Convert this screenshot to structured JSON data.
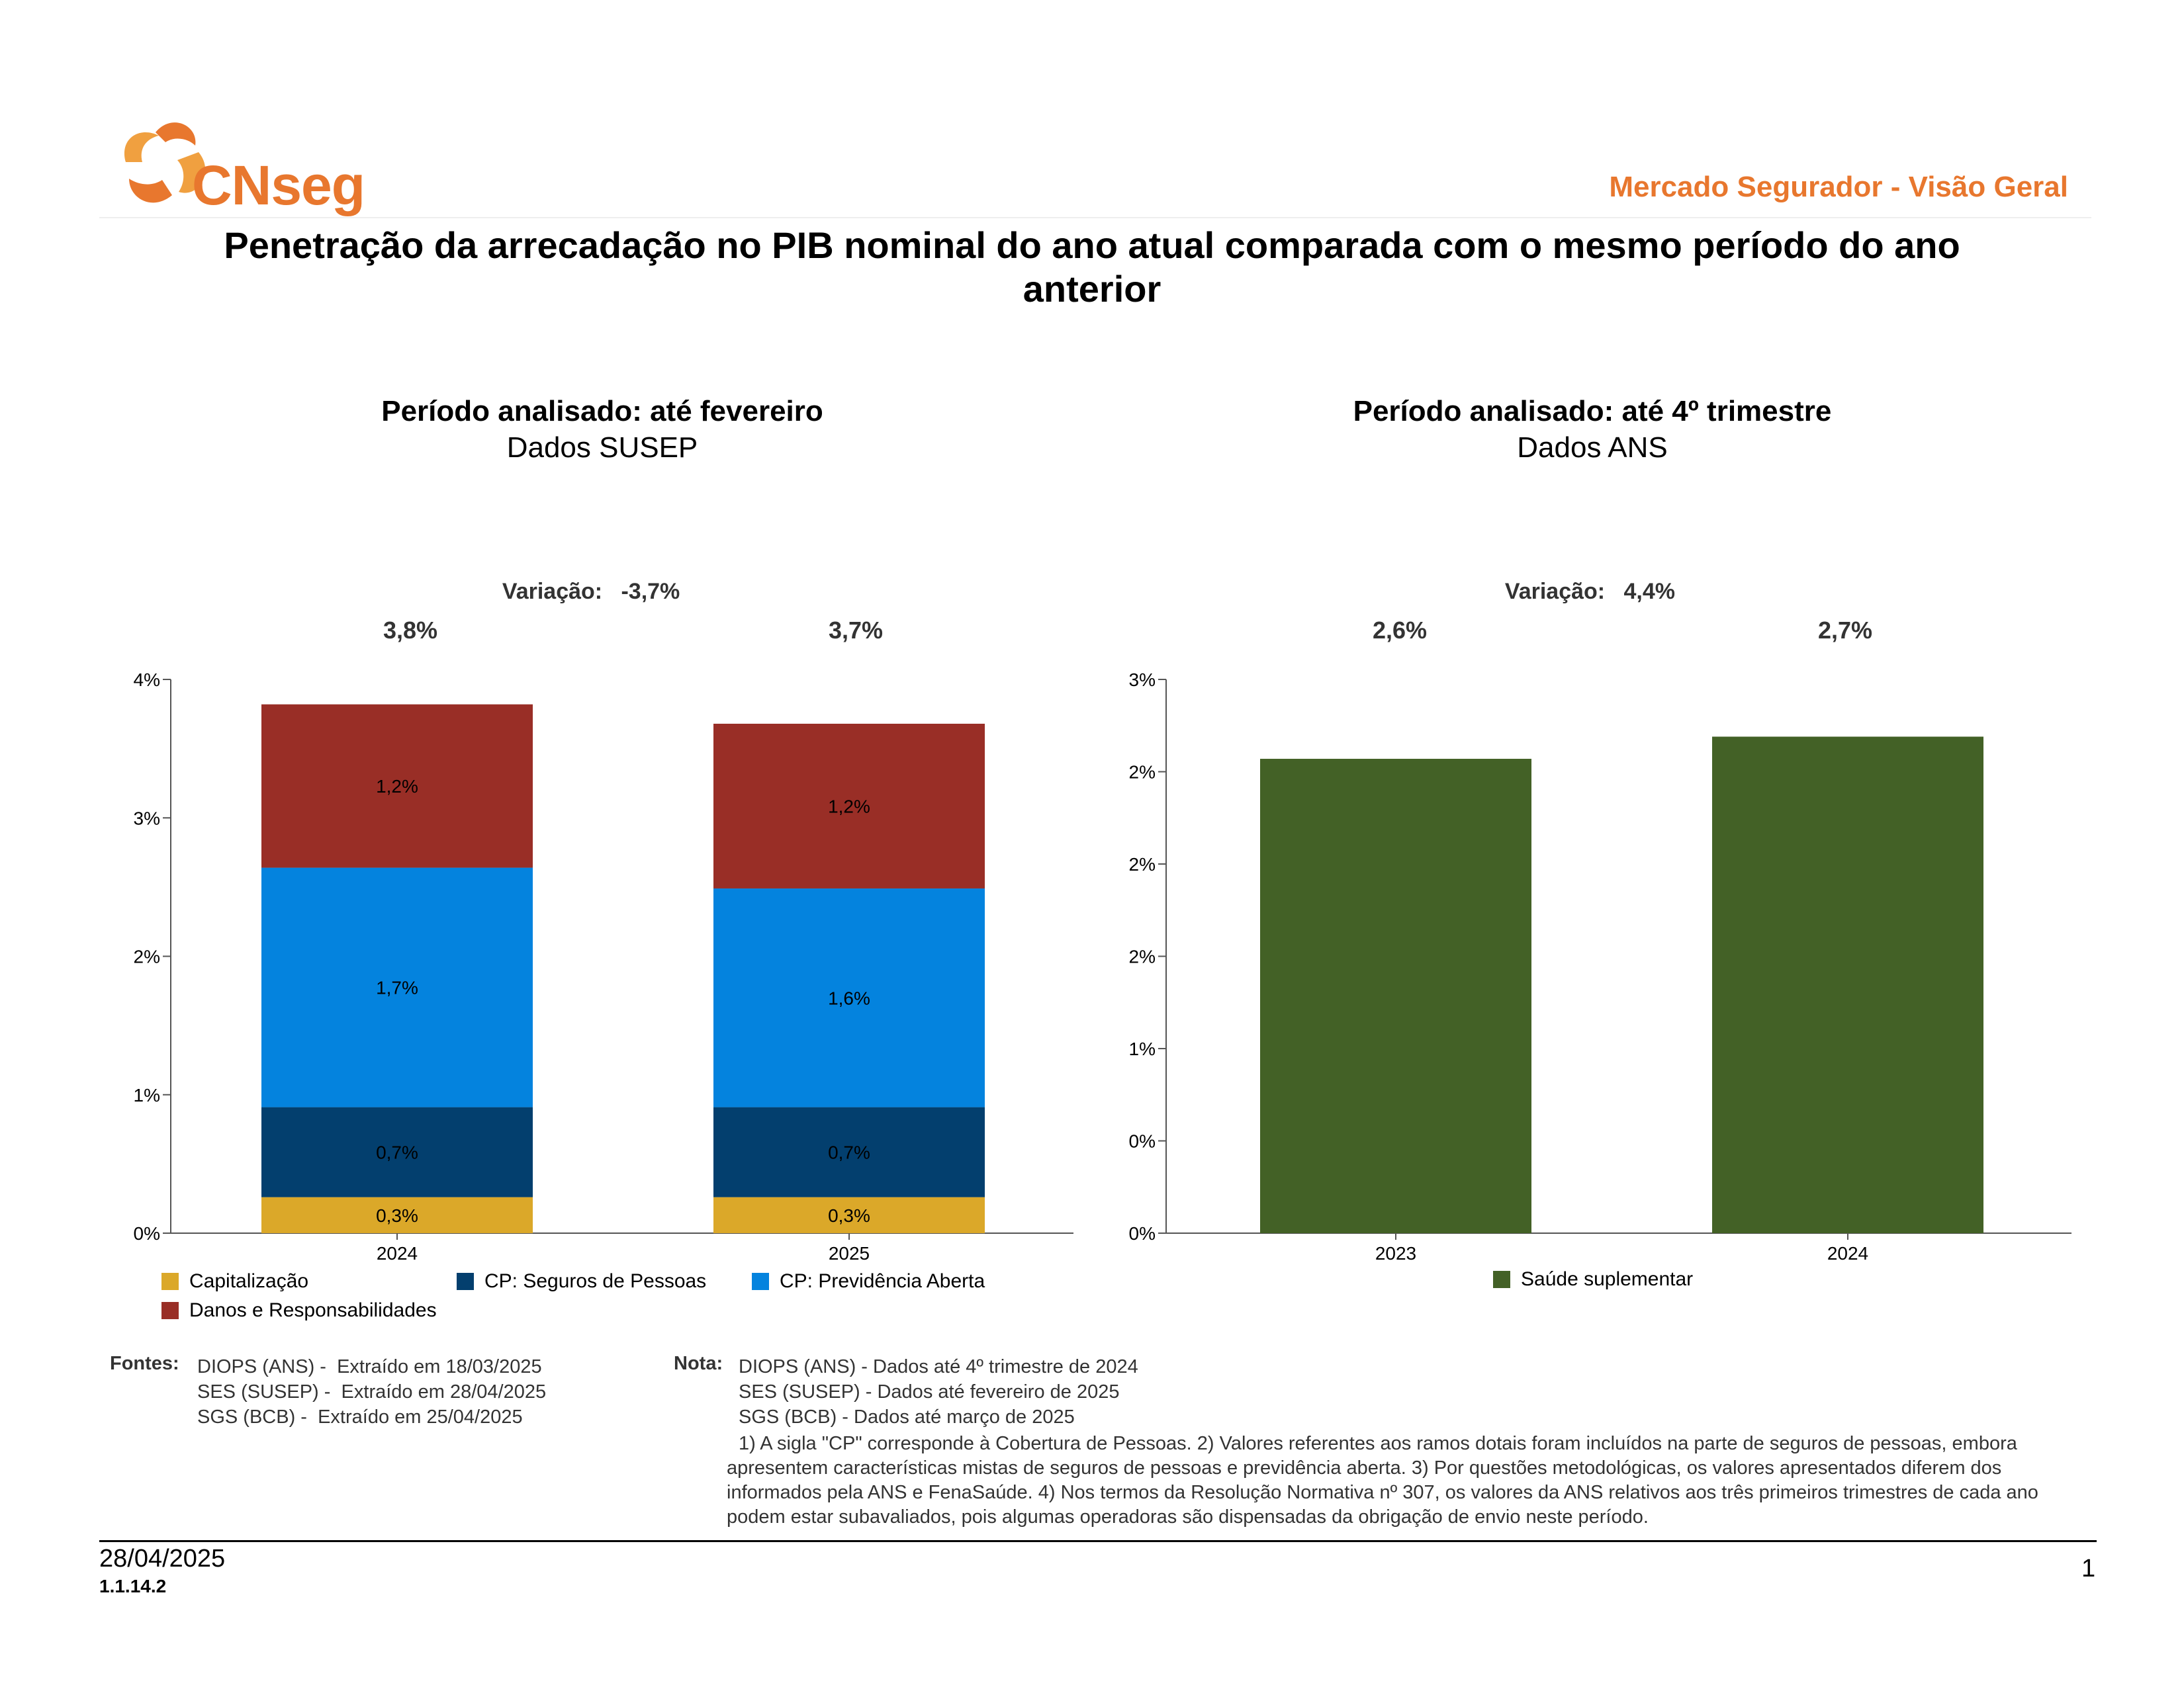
{
  "header": {
    "logo_text": "CNseg",
    "section_title": "Mercado Segurador - Visão Geral"
  },
  "title": "Penetração da arrecadação no PIB nominal do ano atual comparada com o mesmo período do ano anterior",
  "colors": {
    "brand_orange": "#e8772e",
    "capitalizacao": "#dba829",
    "seguros_pessoas": "#033f6e",
    "previdencia": "#0483de",
    "danos": "#992e26",
    "saude": "#436126"
  },
  "left_panel": {
    "title": "Período analisado: até fevereiro",
    "subtitle": "Dados SUSEP",
    "variation_label": "Variação:",
    "variation_value": "-3,7%",
    "totals": [
      "3,8%",
      "3,7%"
    ]
  },
  "right_panel": {
    "title": "Período analisado: até 4º trimestre",
    "subtitle": "Dados ANS",
    "variation_label": "Variação:",
    "variation_value": "4,4%",
    "totals": [
      "2,6%",
      "2,7%"
    ]
  },
  "chart_data": [
    {
      "type": "bar",
      "stacked": true,
      "categories": [
        "2024",
        "2025"
      ],
      "ylim": [
        0,
        4
      ],
      "y_ticks": [
        "0%",
        "1%",
        "2%",
        "3%",
        "4%"
      ],
      "series": [
        {
          "name": "Capitalização",
          "color": "#dba829",
          "values": [
            0.26,
            0.26
          ],
          "labels": [
            "0,3%",
            "0,3%"
          ]
        },
        {
          "name": "CP: Seguros de Pessoas",
          "color": "#033f6e",
          "values": [
            0.65,
            0.65
          ],
          "labels": [
            "0,7%",
            "0,7%"
          ]
        },
        {
          "name": "CP: Previdência Aberta",
          "color": "#0483de",
          "values": [
            1.73,
            1.58
          ],
          "labels": [
            "1,7%",
            "1,6%"
          ]
        },
        {
          "name": "Danos e Responsabilidades",
          "color": "#992e26",
          "values": [
            1.18,
            1.19
          ],
          "labels": [
            "1,2%",
            "1,2%"
          ]
        }
      ],
      "legend": "bottom-left",
      "grid": false
    },
    {
      "type": "bar",
      "categories": [
        "2023",
        "2024"
      ],
      "ylim": [
        0,
        3
      ],
      "y_ticks": [
        "0%",
        "0%",
        "1%",
        "2%",
        "2%",
        "2%",
        "3%"
      ],
      "series": [
        {
          "name": "Saúde suplementar",
          "color": "#436126",
          "values": [
            2.57,
            2.69
          ]
        }
      ],
      "legend": "bottom-center",
      "grid": false
    }
  ],
  "footer": {
    "sources_label": "Fontes:",
    "sources": [
      "DIOPS (ANS) -  Extraído em 18/03/2025",
      "SES (SUSEP) -  Extraído em 28/04/2025",
      "SGS (BCB) -  Extraído em 25/04/2025"
    ],
    "note_label": "Nota:",
    "note_lines": [
      "DIOPS (ANS) - Dados até 4º trimestre de 2024",
      "SES (SUSEP) - Dados até fevereiro de 2025",
      "SGS (BCB) - Dados até março de 2025"
    ],
    "note_text": "1) A sigla \"CP\" corresponde à Cobertura de Pessoas. 2) Valores referentes aos ramos dotais foram incluídos na parte de seguros de pessoas, embora apresentem características mistas de seguros de pessoas e previdência aberta. 3) Por questões metodológicas, os valores apresentados diferem dos informados pela ANS e FenaSaúde. 4) Nos termos da Resolução Normativa nº 307, os valores da ANS relativos aos três primeiros trimestres de cada ano podem estar subavaliados, pois algumas operadoras são dispensadas da obrigação de envio neste período.",
    "date": "28/04/2025",
    "code": "1.1.14.2",
    "page": "1"
  }
}
